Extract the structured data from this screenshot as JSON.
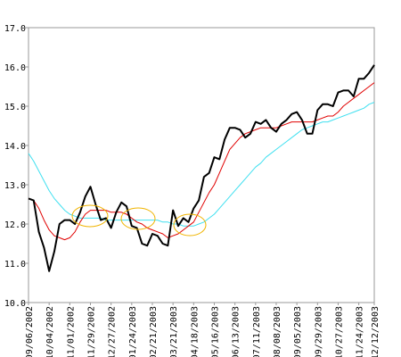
{
  "chart_data": {
    "type": "line",
    "categories": [
      "09/06/2002",
      null,
      null,
      null,
      "10/04/2002",
      null,
      null,
      null,
      "11/01/2002",
      null,
      null,
      null,
      "11/29/2002",
      null,
      null,
      null,
      "12/27/2002",
      null,
      null,
      null,
      "01/24/2003",
      null,
      null,
      null,
      "02/21/2003",
      null,
      null,
      null,
      "03/21/2003",
      null,
      null,
      null,
      "04/18/2003",
      null,
      null,
      null,
      "05/16/2003",
      null,
      null,
      null,
      "06/13/2003",
      null,
      null,
      null,
      "07/11/2003",
      null,
      null,
      null,
      "08/08/2003",
      null,
      null,
      null,
      "09/05/2003",
      null,
      null,
      null,
      "09/29/2003",
      null,
      null,
      null,
      "10/27/2003",
      null,
      null,
      null,
      "11/24/2003",
      null,
      null,
      "12/12/2003"
    ],
    "series": [
      {
        "color": "#40e0f0",
        "width": 1,
        "values": [
          13.8,
          13.6,
          13.35,
          13.1,
          12.85,
          12.65,
          12.5,
          12.35,
          12.25,
          12.2,
          12.15,
          12.15,
          12.15,
          12.15,
          12.15,
          12.1,
          12.1,
          12.1,
          12.1,
          12.1,
          12.1,
          12.1,
          12.1,
          12.1,
          12.1,
          12.1,
          12.05,
          12.05,
          12.0,
          12.0,
          11.95,
          11.95,
          11.95,
          12.0,
          12.05,
          12.15,
          12.25,
          12.4,
          12.55,
          12.7,
          12.85,
          13.0,
          13.15,
          13.3,
          13.45,
          13.55,
          13.7,
          13.8,
          13.9,
          14.0,
          14.1,
          14.2,
          14.3,
          14.4,
          14.45,
          14.5,
          14.55,
          14.6,
          14.6,
          14.65,
          14.7,
          14.75,
          14.8,
          14.85,
          14.9,
          14.95,
          15.05,
          15.1
        ]
      },
      {
        "color": "#e00000",
        "width": 1,
        "values": [
          12.65,
          12.6,
          12.4,
          12.1,
          11.85,
          11.7,
          11.65,
          11.6,
          11.65,
          11.8,
          12.05,
          12.25,
          12.35,
          12.35,
          12.35,
          12.35,
          12.3,
          12.3,
          12.3,
          12.25,
          12.15,
          12.05,
          12.0,
          11.9,
          11.85,
          11.8,
          11.75,
          11.65,
          11.7,
          11.75,
          11.85,
          11.95,
          12.05,
          12.3,
          12.55,
          12.8,
          13.0,
          13.3,
          13.6,
          13.9,
          14.05,
          14.2,
          14.3,
          14.35,
          14.4,
          14.45,
          14.45,
          14.45,
          14.45,
          14.5,
          14.55,
          14.6,
          14.6,
          14.6,
          14.6,
          14.6,
          14.65,
          14.7,
          14.75,
          14.75,
          14.85,
          15.0,
          15.1,
          15.2,
          15.3,
          15.4,
          15.5,
          15.6
        ]
      },
      {
        "color": "#000000",
        "width": 2,
        "values": [
          12.65,
          12.6,
          11.8,
          11.4,
          10.8,
          11.3,
          12.0,
          12.1,
          12.1,
          12.0,
          12.3,
          12.7,
          12.95,
          12.5,
          12.1,
          12.15,
          11.9,
          12.3,
          12.55,
          12.45,
          11.95,
          11.9,
          11.5,
          11.45,
          11.75,
          11.7,
          11.5,
          11.45,
          12.35,
          11.95,
          12.15,
          12.05,
          12.4,
          12.6,
          13.2,
          13.3,
          13.7,
          13.65,
          14.15,
          14.45,
          14.45,
          14.4,
          14.2,
          14.3,
          14.6,
          14.55,
          14.65,
          14.45,
          14.35,
          14.55,
          14.65,
          14.8,
          14.85,
          14.65,
          14.3,
          14.3,
          14.9,
          15.05,
          15.05,
          15.0,
          15.35,
          15.4,
          15.4,
          15.25,
          15.7,
          15.7,
          15.85,
          16.05
        ]
      }
    ],
    "ylim": [
      10,
      17
    ],
    "yticks": [
      {
        "value": 10,
        "label": "10.0"
      },
      {
        "value": 11,
        "label": "11.0"
      },
      {
        "value": 12,
        "label": "12.0"
      },
      {
        "value": 13,
        "label": "13.0"
      },
      {
        "value": 14,
        "label": "14.0"
      },
      {
        "value": 15,
        "label": "15.0"
      },
      {
        "value": 16,
        "label": "16.0"
      },
      {
        "value": 17,
        "label": "17.0"
      }
    ],
    "grid": false
  }
}
